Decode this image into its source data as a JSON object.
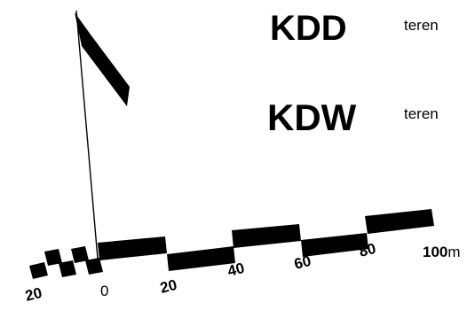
{
  "legend": [
    {
      "code": "KDD",
      "description": "teren"
    },
    {
      "code": "KDW",
      "description": "teren"
    }
  ],
  "scale_bar": {
    "tick_labels": [
      "20",
      "0",
      "20",
      "40",
      "60",
      "80",
      "100"
    ],
    "unit": "m"
  },
  "colors": {
    "ink": "#000000",
    "background": "#ffffff"
  },
  "icons": {
    "marker": "north-arrow-flag-icon"
  }
}
